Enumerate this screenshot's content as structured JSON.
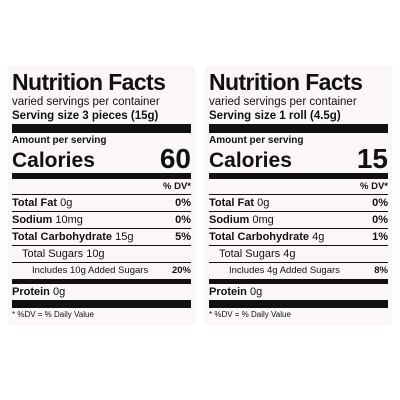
{
  "labels": [
    {
      "title": "Nutrition Facts",
      "servings": "varied servings per container",
      "serving_size": "Serving size 3 pieces (15g)",
      "amount_per_serving": "Amount per serving",
      "calories_label": "Calories",
      "calories_value": "60",
      "dv_header": "% DV*",
      "rows": [
        {
          "name": "Total Fat",
          "amount": "0g",
          "dv": "0%"
        },
        {
          "name": "Sodium",
          "amount": "10mg",
          "dv": "0%"
        },
        {
          "name": "Total Carbohydrate",
          "amount": "15g",
          "dv": "5%"
        },
        {
          "amount": "Total Sugars 10g"
        },
        {
          "amount": "Includes 10g Added Sugars",
          "dv": "20%"
        },
        {
          "name": "Protein",
          "amount": "0g"
        }
      ],
      "footnote": "* %DV = % Daily Value"
    },
    {
      "title": "Nutrition Facts",
      "servings": "varied servings per container",
      "serving_size": "Serving size 1 roll (4.5g)",
      "amount_per_serving": "Amount per serving",
      "calories_label": "Calories",
      "calories_value": "15",
      "dv_header": "% DV*",
      "rows": [
        {
          "name": "Total Fat",
          "amount": "0g",
          "dv": "0%"
        },
        {
          "name": "Sodium",
          "amount": "0mg",
          "dv": "0%"
        },
        {
          "name": "Total Carbohydrate",
          "amount": "4g",
          "dv": "1%"
        },
        {
          "amount": "Total Sugars 4g"
        },
        {
          "amount": "Includes 4g Added Sugars",
          "dv": "8%"
        },
        {
          "name": "Protein",
          "amount": "0g"
        }
      ],
      "footnote": "* %DV = % Daily Value"
    }
  ]
}
